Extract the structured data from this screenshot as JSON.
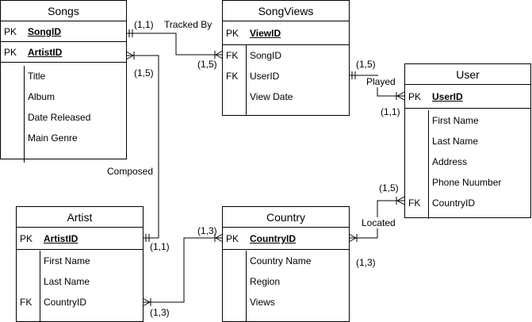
{
  "entities": {
    "songs": {
      "title": "Songs",
      "rows": [
        {
          "key": "PK",
          "name": "SongID"
        },
        {
          "key": "PK",
          "name": "ArtistID"
        },
        {
          "key": "",
          "name": "Title"
        },
        {
          "key": "",
          "name": "Album"
        },
        {
          "key": "",
          "name": "Date Released"
        },
        {
          "key": "",
          "name": "Main Genre"
        }
      ]
    },
    "songviews": {
      "title": "SongViews",
      "rows": [
        {
          "key": "PK",
          "name": "ViewID"
        },
        {
          "key": "FK",
          "name": "SongID"
        },
        {
          "key": "FK",
          "name": "UserID"
        },
        {
          "key": "",
          "name": "View Date"
        }
      ]
    },
    "user": {
      "title": "User",
      "rows": [
        {
          "key": "PK",
          "name": "UserID"
        },
        {
          "key": "",
          "name": "First Name"
        },
        {
          "key": "",
          "name": "Last Name"
        },
        {
          "key": "",
          "name": "Address"
        },
        {
          "key": "",
          "name": "Phone Nuumber"
        },
        {
          "key": "FK",
          "name": "CountryID"
        }
      ]
    },
    "artist": {
      "title": "Artist",
      "rows": [
        {
          "key": "PK",
          "name": "ArtistID"
        },
        {
          "key": "",
          "name": "First Name"
        },
        {
          "key": "",
          "name": "Last Name"
        },
        {
          "key": "FK",
          "name": "CountryID"
        }
      ]
    },
    "country": {
      "title": "Country",
      "rows": [
        {
          "key": "PK",
          "name": "CountryID"
        },
        {
          "key": "",
          "name": "Country Name"
        },
        {
          "key": "",
          "name": "Region"
        },
        {
          "key": "",
          "name": "Views"
        }
      ]
    }
  },
  "relationships": {
    "tracked_by": {
      "label": "Tracked By",
      "card_a": "(1,1)",
      "card_b": "(1,5)"
    },
    "composed": {
      "label": "Composed",
      "card_a": "(1,5)",
      "card_b": "(1,1)"
    },
    "played": {
      "label": "Played",
      "card_a": "(1,5)",
      "card_b": "(1,1)"
    },
    "located": {
      "label": "Located",
      "card_a": "(1,5)",
      "card_b": "(1,3)"
    },
    "artist_country": {
      "card_a": "(1,3)",
      "card_b": "(1,3)"
    }
  }
}
